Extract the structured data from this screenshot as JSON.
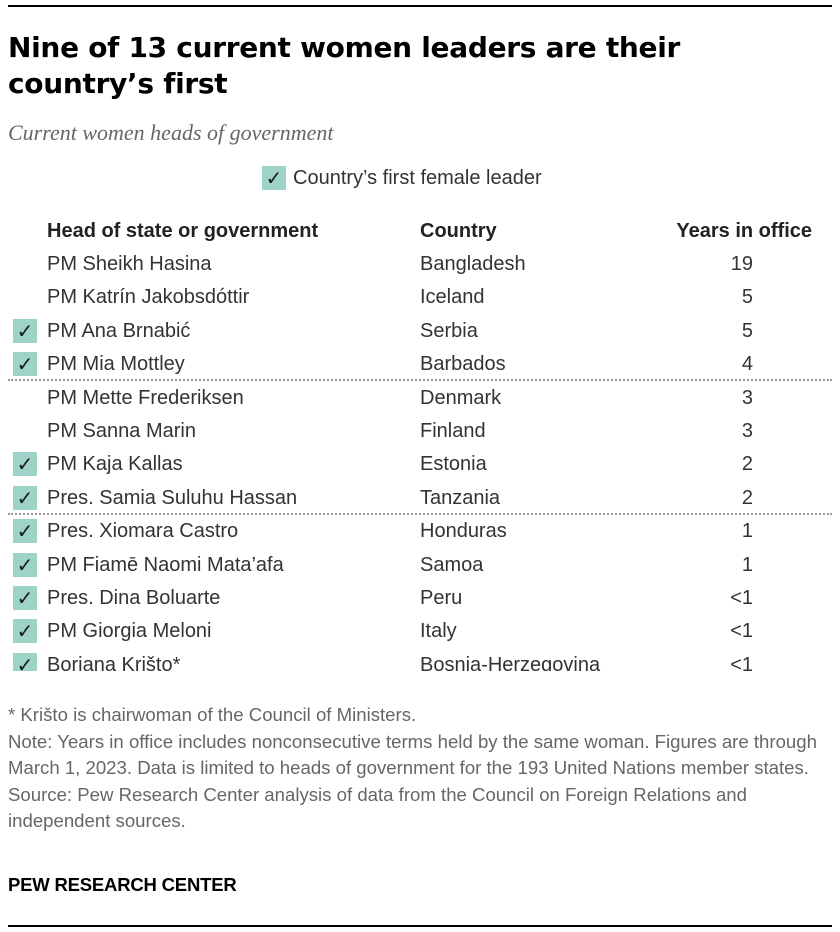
{
  "title": "Nine of 13 current women leaders are their country’s first",
  "subtitle": "Current women heads of government",
  "legend": {
    "symbol": "✓",
    "label": "Country’s first female leader",
    "color": "#9ed3c7"
  },
  "chart_data": {
    "type": "table",
    "columns": [
      "Head of state or government",
      "Country",
      "Years in office"
    ],
    "rows": [
      {
        "name": "PM Sheikh Hasina",
        "country": "Bangladesh",
        "years": "19",
        "first": false
      },
      {
        "name": "PM Katrín Jakobsdóttir",
        "country": "Iceland",
        "years": "5",
        "first": false
      },
      {
        "name": "PM Ana Brnabić",
        "country": "Serbia",
        "years": "5",
        "first": true
      },
      {
        "name": "PM Mia Mottley",
        "country": "Barbados",
        "years": "4",
        "first": true
      },
      {
        "name": "PM Mette Frederiksen",
        "country": "Denmark",
        "years": "3",
        "first": false
      },
      {
        "name": "PM Sanna Marin",
        "country": "Finland",
        "years": "3",
        "first": false
      },
      {
        "name": "PM Kaja Kallas",
        "country": "Estonia",
        "years": "2",
        "first": true
      },
      {
        "name": "Pres. Samia Suluhu Hassan",
        "country": "Tanzania",
        "years": "2",
        "first": true
      },
      {
        "name": "Pres. Xiomara Castro",
        "country": "Honduras",
        "years": "1",
        "first": true
      },
      {
        "name": "PM Fiamē Naomi Mata’afa",
        "country": "Samoa",
        "years": "1",
        "first": true
      },
      {
        "name": "Pres. Dina Boluarte",
        "country": "Peru",
        "years": "<1",
        "first": true
      },
      {
        "name": "PM Giorgia Meloni",
        "country": "Italy",
        "years": "<1",
        "first": true
      },
      {
        "name": "Borjana Krišto*",
        "country": "Bosnia-Herzegovina",
        "years": "<1",
        "first": true
      }
    ]
  },
  "notes": {
    "footnote": "* Krišto is chairwoman of the Council of Ministers.",
    "note": "Note: Years in office includes nonconsecutive terms held by the same woman. Figures are through March 1, 2023. Data is limited to heads of government for the 193 United Nations member states.",
    "source": "Source: Pew Research Center analysis of data from the Council on Foreign Relations and independent sources."
  },
  "credit": "PEW RESEARCH CENTER"
}
